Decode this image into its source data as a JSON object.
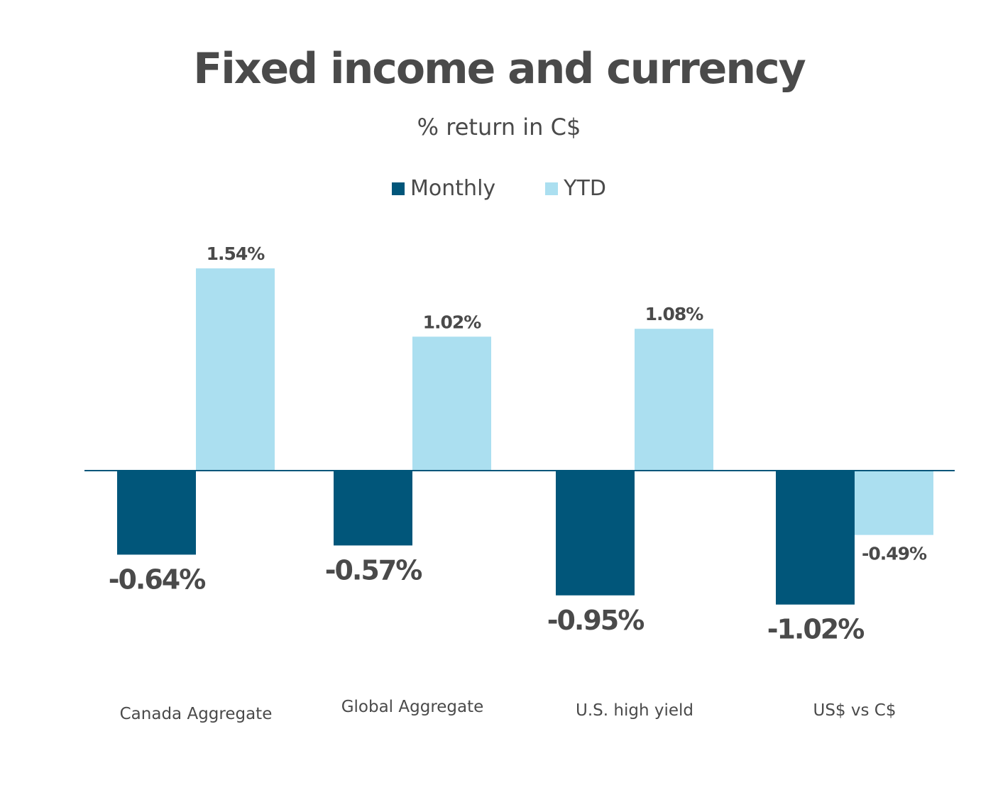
{
  "chart_data": {
    "type": "bar",
    "title": "Fixed income and currency",
    "subtitle": "% return in C$",
    "categories": [
      "Canada Aggregate",
      "Global Aggregate",
      "U.S. high yield",
      "US$ vs C$"
    ],
    "series": [
      {
        "name": "Monthly",
        "values": [
          -0.64,
          -0.57,
          -0.95,
          -1.02
        ],
        "labels": [
          "-0.64%",
          "-0.57%",
          "-0.95%",
          "-1.02%"
        ],
        "color": "#01567a"
      },
      {
        "name": "YTD",
        "values": [
          1.54,
          1.02,
          1.08,
          -0.49
        ],
        "labels": [
          "1.54%",
          "1.02%",
          "1.08%",
          "-0.49%"
        ],
        "color": "#abdff0"
      }
    ],
    "ylim": [
      -1.02,
      1.54
    ],
    "grid": false,
    "legend_position": "top-center",
    "axis_color": "#01567a",
    "text_color": "#4a4a4a"
  }
}
